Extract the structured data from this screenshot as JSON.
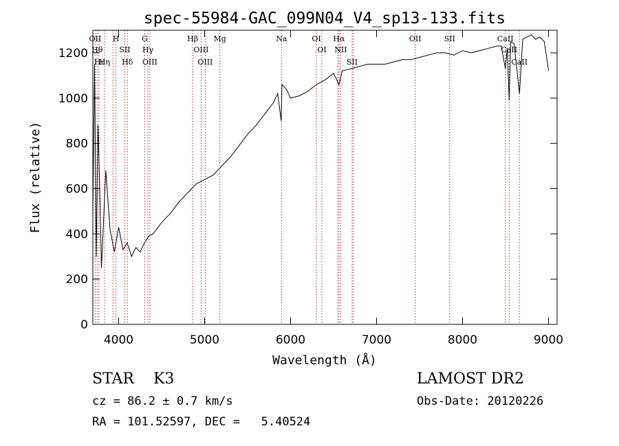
{
  "chart_data": {
    "type": "line",
    "title": "spec-55984-GAC_099N04_V4_sp13-133.fits",
    "xlabel": "Wavelength (Å)",
    "ylabel": "Flux (relative)",
    "xlim": [
      3700,
      9100
    ],
    "ylim": [
      0,
      1300
    ],
    "xticks": [
      4000,
      5000,
      6000,
      7000,
      8000,
      9000
    ],
    "yticks": [
      0,
      200,
      400,
      600,
      800,
      1000,
      1200
    ],
    "grid": false,
    "legend": "none",
    "series_color": "#000000",
    "line_marker_color": "#b22222",
    "series": [
      {
        "x": [
          3700,
          3720,
          3740,
          3760,
          3780,
          3800,
          3850,
          3900,
          3950,
          4000,
          4050,
          4100,
          4150,
          4200,
          4250,
          4300,
          4350,
          4400,
          4500,
          4600,
          4700,
          4800,
          4900,
          5000,
          5100,
          5200,
          5300,
          5400,
          5500,
          5600,
          5700,
          5800,
          5850,
          5890,
          5900,
          5950,
          6000,
          6100,
          6200,
          6300,
          6400,
          6500,
          6563,
          6600,
          6700,
          6800,
          6900,
          7000,
          7100,
          7200,
          7300,
          7400,
          7500,
          7600,
          7700,
          7800,
          7900,
          8000,
          8100,
          8200,
          8300,
          8400,
          8450,
          8498,
          8520,
          8542,
          8560,
          8600,
          8662,
          8700,
          8750,
          8800,
          8850,
          8900,
          8950,
          8990,
          9000
        ],
        "y": [
          480,
          1150,
          300,
          880,
          600,
          250,
          680,
          420,
          320,
          430,
          330,
          360,
          300,
          340,
          320,
          360,
          390,
          400,
          450,
          490,
          540,
          580,
          620,
          640,
          660,
          700,
          740,
          790,
          840,
          880,
          930,
          980,
          1020,
          900,
          1060,
          1040,
          1000,
          1010,
          1030,
          1060,
          1080,
          1110,
          1060,
          1120,
          1130,
          1140,
          1150,
          1150,
          1150,
          1160,
          1170,
          1170,
          1180,
          1190,
          1200,
          1200,
          1190,
          1210,
          1200,
          1210,
          1220,
          1230,
          1230,
          1130,
          1220,
          990,
          1250,
          1240,
          1020,
          1260,
          1270,
          1280,
          1260,
          1270,
          1250,
          1150,
          1120
        ]
      }
    ],
    "line_markers": [
      {
        "wave": 3727,
        "label": "OII"
      },
      {
        "wave": 3750,
        "label": "Hθ"
      },
      {
        "wave": 3771,
        "label": "Hι"
      },
      {
        "wave": 3835,
        "label": "Hη"
      },
      {
        "wave": 3934,
        "label": ""
      },
      {
        "wave": 3969,
        "label": "H"
      },
      {
        "wave": 4072,
        "label": "SII"
      },
      {
        "wave": 4102,
        "label": "Hδ"
      },
      {
        "wave": 4304,
        "label": "G"
      },
      {
        "wave": 4340,
        "label": "Hγ"
      },
      {
        "wave": 4363,
        "label": "OIII"
      },
      {
        "wave": 4861,
        "label": "Hβ"
      },
      {
        "wave": 4959,
        "label": "OIII"
      },
      {
        "wave": 5007,
        "label": "OIII"
      },
      {
        "wave": 5177,
        "label": "Mg"
      },
      {
        "wave": 5895,
        "label": "Na"
      },
      {
        "wave": 6300,
        "label": "OI"
      },
      {
        "wave": 6364,
        "label": "OI"
      },
      {
        "wave": 6548,
        "label": ""
      },
      {
        "wave": 6563,
        "label": "Hα"
      },
      {
        "wave": 6583,
        "label": "NII"
      },
      {
        "wave": 6716,
        "label": "SII"
      },
      {
        "wave": 6731,
        "label": ""
      },
      {
        "wave": 7450,
        "label": "OII"
      },
      {
        "wave": 7850,
        "label": "SII"
      },
      {
        "wave": 8498,
        "label": "CaII"
      },
      {
        "wave": 8542,
        "label": "CaII"
      },
      {
        "wave": 8662,
        "label": "CaII"
      }
    ]
  },
  "info": {
    "class_line": "STAR    K3",
    "survey": "LAMOST DR2",
    "cz_line": "cz = 86.2 ± 0.7 km/s",
    "obs_date": "Obs-Date: 20120226",
    "coords_line": "RA = 101.52597, DEC =   5.40524"
  }
}
